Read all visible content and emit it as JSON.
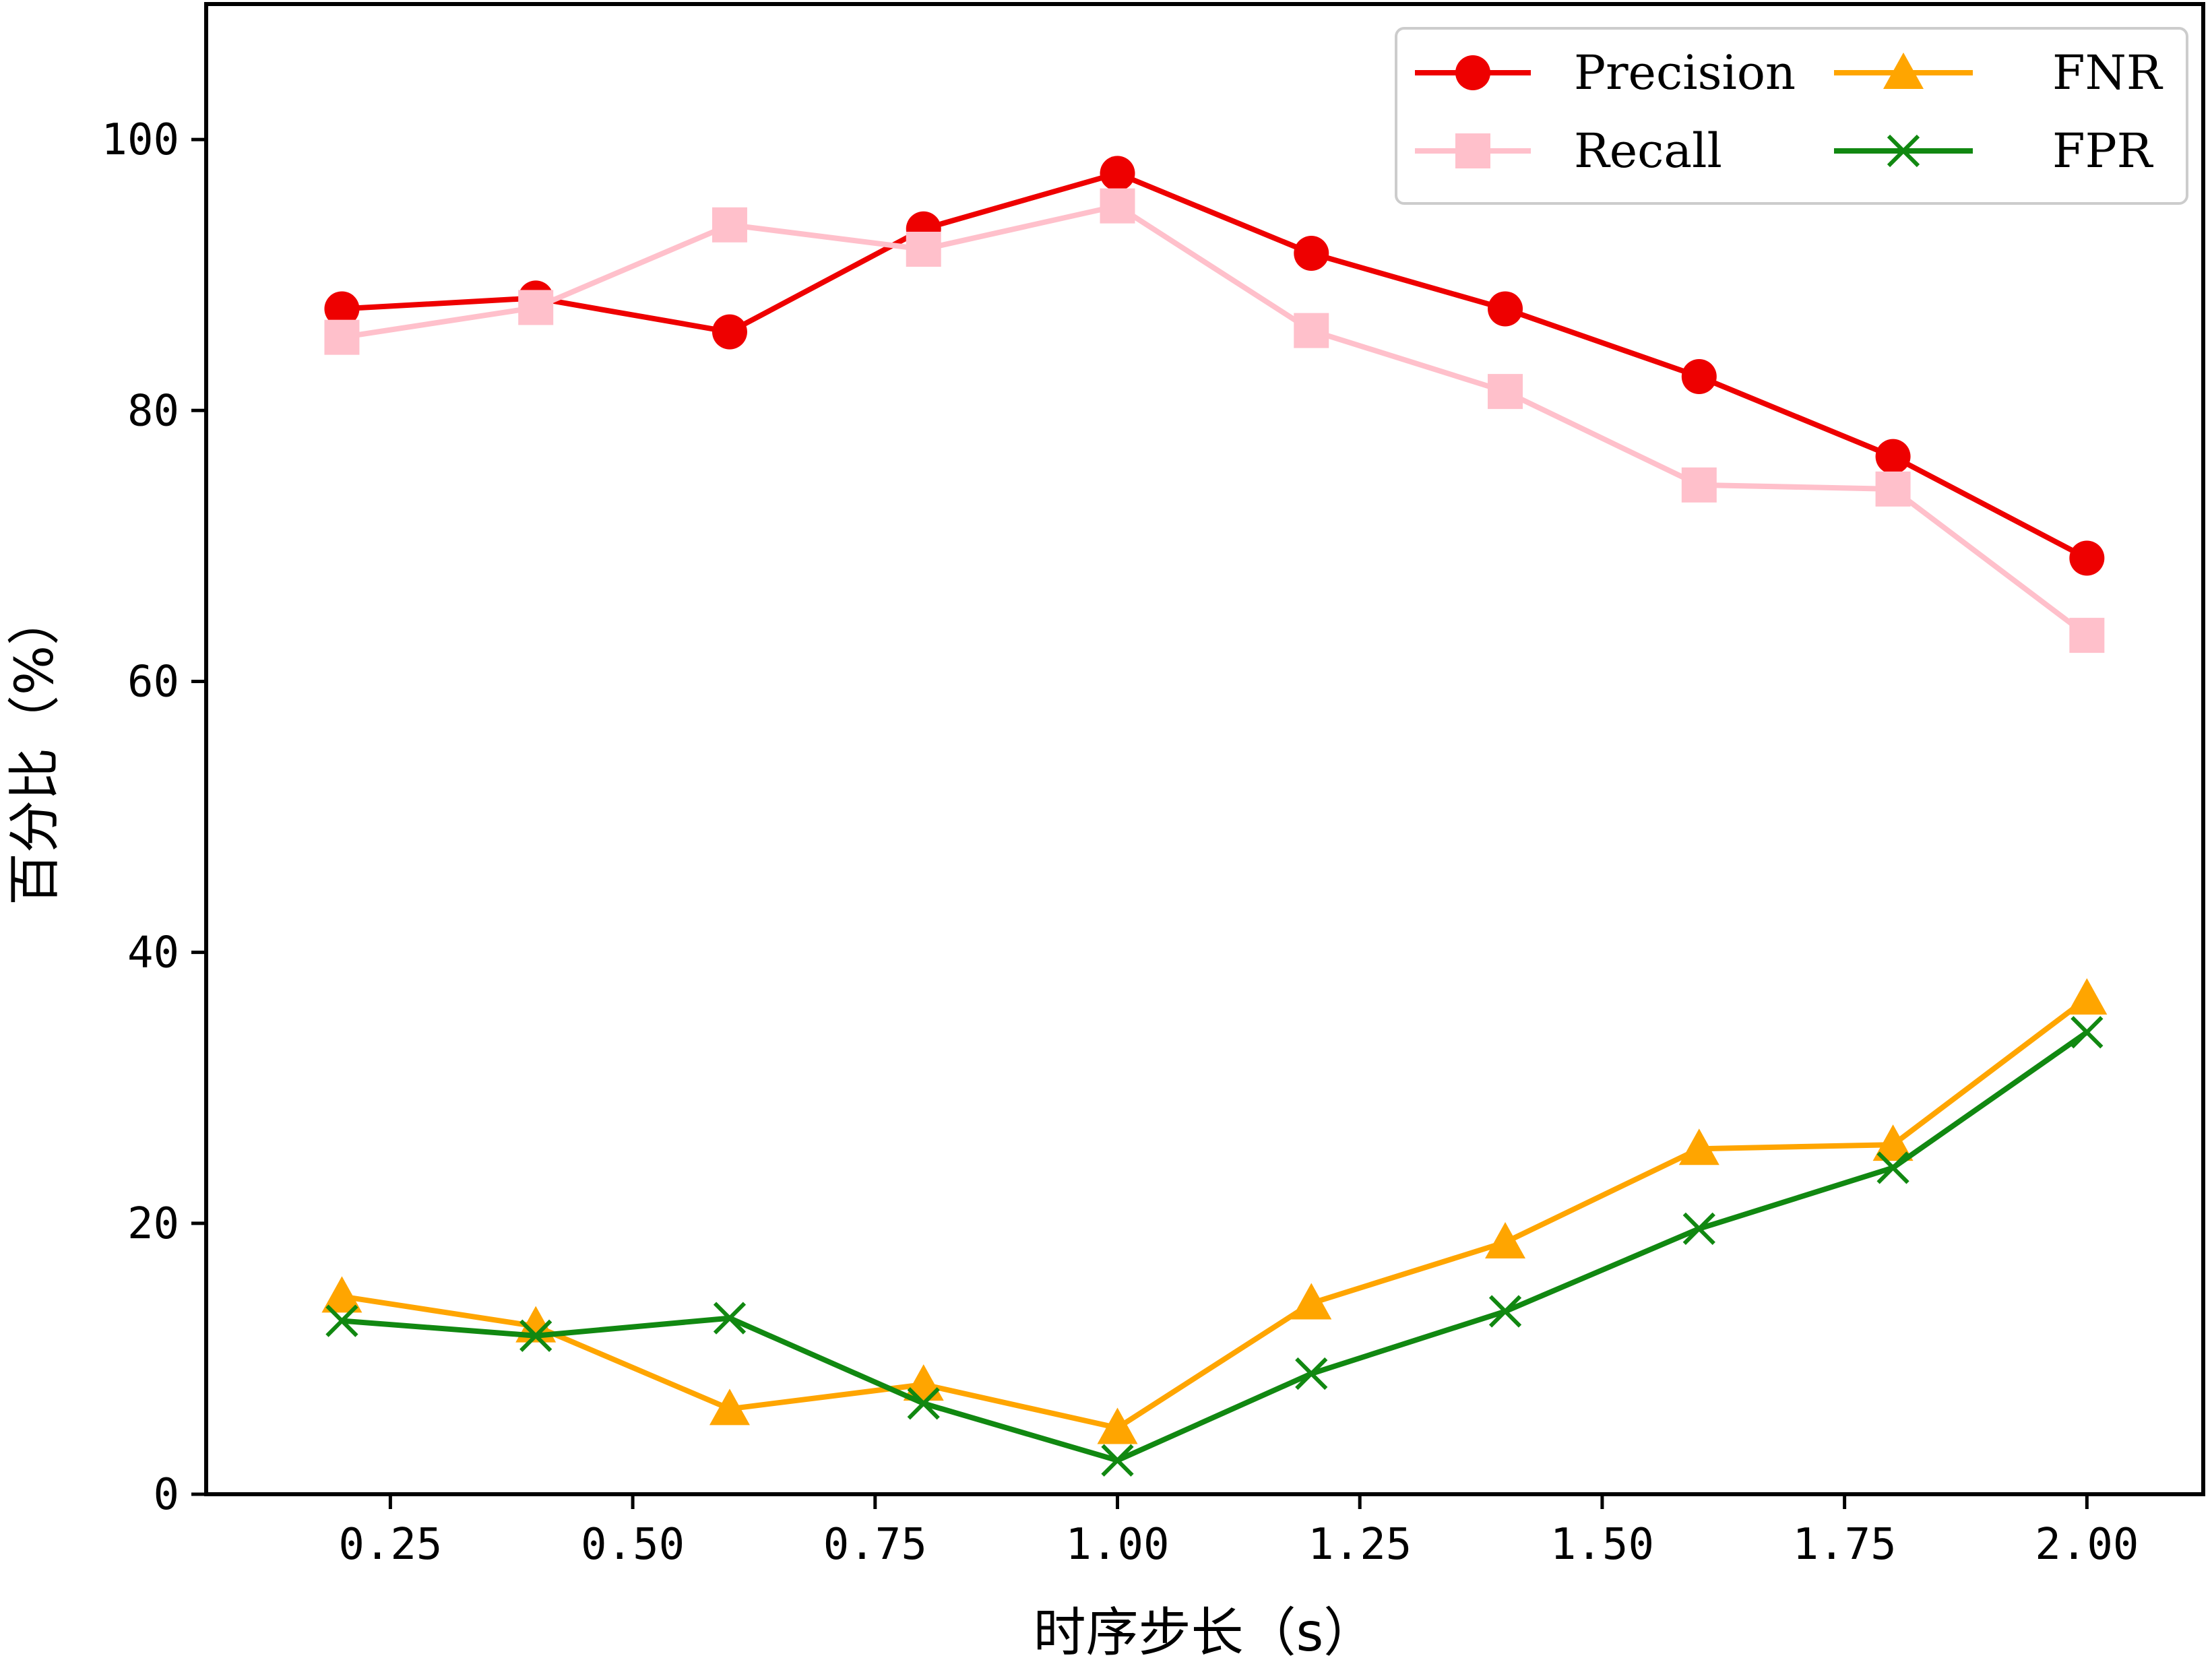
{
  "chart_data": {
    "type": "line",
    "title": "",
    "xlabel": "时序步长（s）",
    "ylabel": "百分比（%）",
    "xlim": [
      0.06,
      2.12
    ],
    "ylim": [
      0,
      110
    ],
    "xticks": [
      "0.25",
      "0.50",
      "0.75",
      "1.00",
      "1.25",
      "1.50",
      "1.75",
      "2.00"
    ],
    "yticks": [
      "0",
      "20",
      "40",
      "60",
      "80",
      "100"
    ],
    "grid": false,
    "legend_position": "top-right",
    "x": [
      0.2,
      0.4,
      0.6,
      0.8,
      1.0,
      1.2,
      1.4,
      1.6,
      1.8,
      2.0
    ],
    "series": [
      {
        "name": "Precision",
        "color": "#ee0000",
        "marker": "circle",
        "values": [
          87.5,
          88.3,
          85.8,
          93.4,
          97.5,
          91.6,
          87.5,
          82.5,
          76.6,
          69.1
        ]
      },
      {
        "name": "Recall",
        "color": "#ffc0cb",
        "marker": "square",
        "values": [
          85.4,
          87.6,
          93.7,
          91.9,
          95.1,
          85.9,
          81.4,
          74.5,
          74.2,
          63.4
        ]
      },
      {
        "name": "FNR",
        "color": "#ffa500",
        "marker": "triangle",
        "values": [
          14.6,
          12.4,
          6.3,
          8.1,
          4.9,
          14.1,
          18.6,
          25.5,
          25.8,
          36.6
        ]
      },
      {
        "name": "FPR",
        "color": "#118811",
        "marker": "x",
        "values": [
          12.8,
          11.7,
          13.0,
          6.7,
          2.5,
          8.9,
          13.5,
          19.6,
          24.1,
          34.1
        ]
      }
    ]
  }
}
